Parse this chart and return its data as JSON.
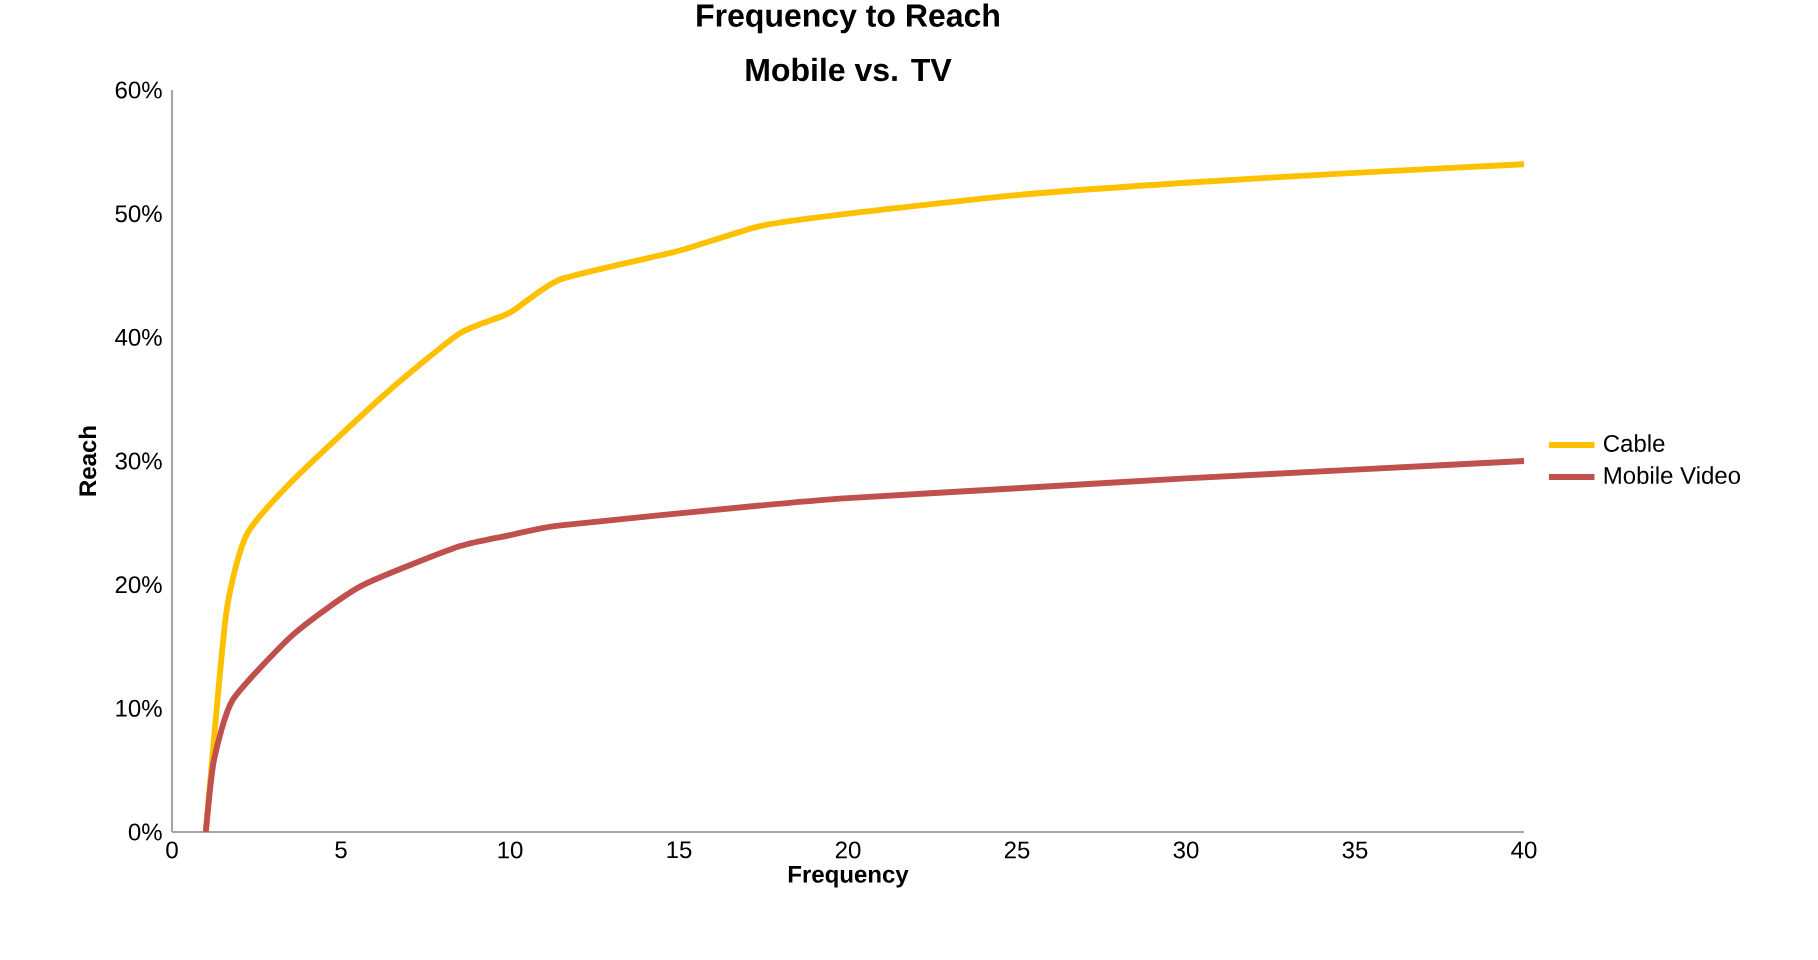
{
  "chart_data": {
    "type": "line",
    "title": "Frequency to Reach",
    "subtitle": "Mobile vs. TV",
    "xlabel": "Frequency",
    "ylabel": "Reach",
    "xlim": [
      0,
      40
    ],
    "xticks": [
      0,
      5,
      10,
      15,
      20,
      25,
      30,
      35,
      40
    ],
    "ylim": [
      0,
      60
    ],
    "yticks": [
      {
        "value": 0,
        "label": "0%"
      },
      {
        "value": 10,
        "label": "10%"
      },
      {
        "value": 20,
        "label": "20%"
      },
      {
        "value": 30,
        "label": "30%"
      },
      {
        "value": 40,
        "label": "40%"
      },
      {
        "value": 50,
        "label": "50%"
      },
      {
        "value": 60,
        "label": "60%"
      }
    ],
    "grid": false,
    "legend": "right",
    "marker": "none",
    "line_style": "solid",
    "series": [
      {
        "name": "Cable",
        "color": "#ffc000",
        "x": [
          1,
          1.6,
          2.2,
          3.6,
          6.3,
          8.5,
          10,
          11.5,
          15,
          17.4,
          20,
          25,
          30,
          35,
          40
        ],
        "values": [
          0,
          17.6,
          24,
          28.5,
          35.4,
          40.3,
          42,
          44.7,
          47,
          49,
          50,
          51.5,
          52.5,
          53.3,
          54
        ]
      },
      {
        "name": "Mobile Video",
        "color": "#c0504d",
        "x": [
          1,
          1.24,
          1.8,
          3.6,
          5.6,
          8.5,
          10,
          11.5,
          17.4,
          20,
          25,
          30,
          35,
          40
        ],
        "values": [
          0,
          5.8,
          10.7,
          16,
          19.9,
          23.1,
          24,
          24.8,
          26.4,
          27,
          27.8,
          28.6,
          29.3,
          30
        ]
      }
    ]
  }
}
